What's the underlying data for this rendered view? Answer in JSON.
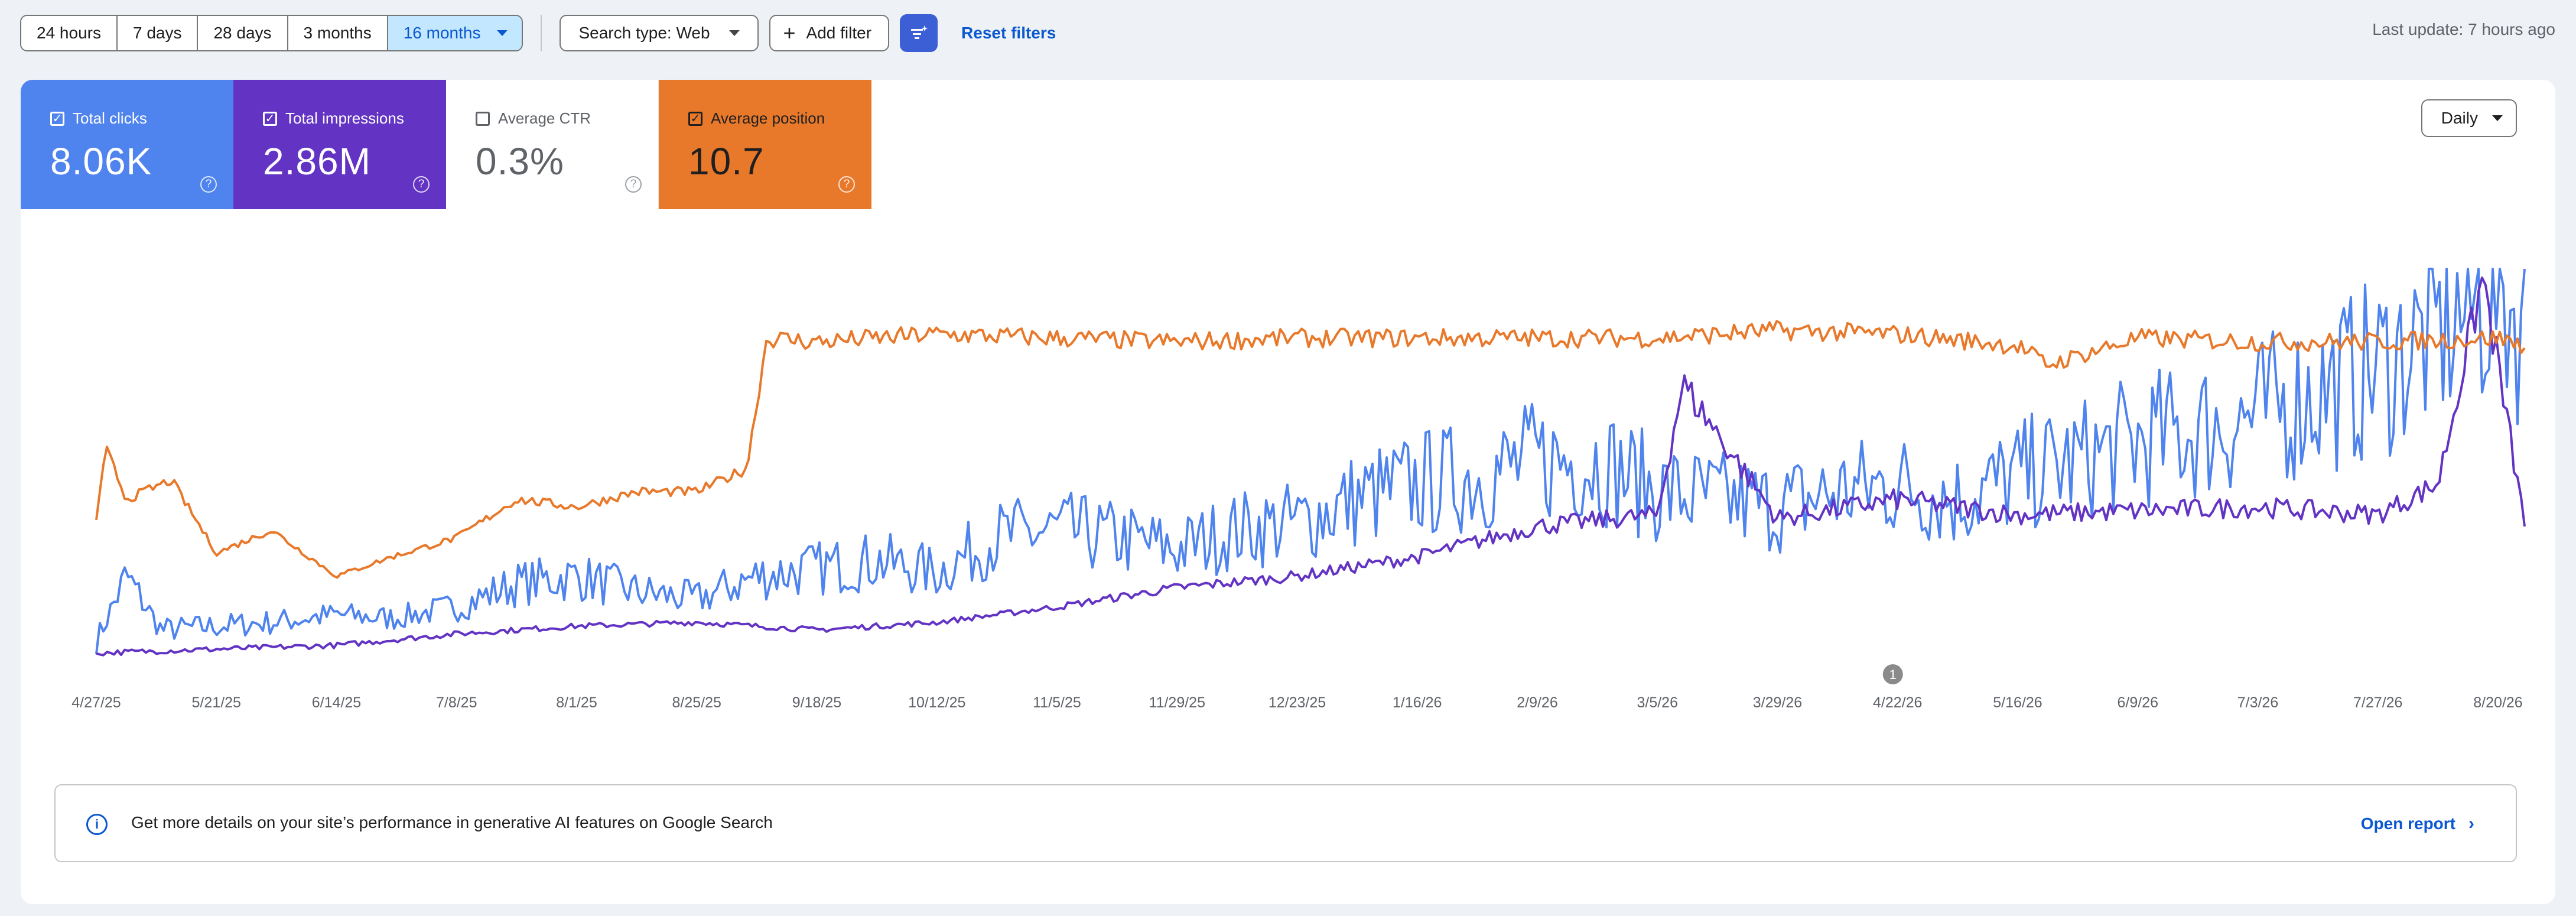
{
  "toolbar": {
    "ranges": [
      "24 hours",
      "7 days",
      "28 days",
      "3 months",
      "16 months"
    ],
    "active_range": "16 months",
    "search_type": "Search type: Web",
    "add_filter": "Add filter",
    "reset_filters": "Reset filters",
    "last_update": "Last update: 7 hours ago"
  },
  "metrics": {
    "clicks": {
      "label": "Total clicks",
      "value": "8.06K",
      "checked": true,
      "color": "#4f83ed"
    },
    "impressions": {
      "label": "Total impressions",
      "value": "2.86M",
      "checked": true,
      "color": "#6333c4"
    },
    "ctr": {
      "label": "Average CTR",
      "value": "0.3%",
      "checked": false
    },
    "position": {
      "label": "Average position",
      "value": "10.7",
      "checked": true,
      "color": "#e8792b"
    }
  },
  "granularity": "Daily",
  "annotation_marker": "1",
  "banner": {
    "text": "Get more details on your site’s performance in generative AI features on Google Search",
    "link": "Open report"
  },
  "chart_data": {
    "type": "line",
    "x_tick_labels": [
      "4/27/25",
      "5/21/25",
      "6/14/25",
      "7/8/25",
      "8/1/25",
      "8/25/25",
      "9/18/25",
      "10/12/25",
      "11/5/25",
      "11/29/25",
      "12/23/25",
      "1/16/26",
      "2/9/26",
      "3/5/26",
      "3/29/26",
      "4/22/26",
      "5/16/26",
      "6/9/26",
      "7/3/26",
      "7/27/26",
      "8/20/26"
    ],
    "x_range": [
      "4/27/25",
      "8/26/26"
    ],
    "annotation_at": "4/22/26",
    "grid": false,
    "series": [
      {
        "name": "Total clicks",
        "color": "#4f83ed",
        "description": "daily clicks, relative scale (0 = lowest, 100 = highest)",
        "points": [
          [
            "4/27/25",
            3
          ],
          [
            "5/3/25",
            20
          ],
          [
            "5/10/25",
            6
          ],
          [
            "5/21/25",
            7
          ],
          [
            "6/1/25",
            8
          ],
          [
            "6/14/25",
            10
          ],
          [
            "6/25/25",
            9
          ],
          [
            "7/8/25",
            12
          ],
          [
            "7/20/25",
            18
          ],
          [
            "8/1/25",
            20
          ],
          [
            "8/13/25",
            16
          ],
          [
            "8/25/25",
            14
          ],
          [
            "9/6/25",
            20
          ],
          [
            "9/18/25",
            22
          ],
          [
            "9/30/25",
            24
          ],
          [
            "10/12/25",
            21
          ],
          [
            "10/24/25",
            30
          ],
          [
            "11/5/25",
            32
          ],
          [
            "11/17/25",
            30
          ],
          [
            "11/29/25",
            27
          ],
          [
            "12/11/25",
            32
          ],
          [
            "12/23/25",
            34
          ],
          [
            "1/4/26",
            40
          ],
          [
            "1/16/26",
            44
          ],
          [
            "1/28/26",
            46
          ],
          [
            "2/9/26",
            50
          ],
          [
            "2/21/26",
            50
          ],
          [
            "3/5/26",
            42
          ],
          [
            "3/17/26",
            40
          ],
          [
            "3/29/26",
            38
          ],
          [
            "4/10/26",
            42
          ],
          [
            "4/22/26",
            44
          ],
          [
            "5/4/26",
            40
          ],
          [
            "5/16/26",
            46
          ],
          [
            "5/28/26",
            50
          ],
          [
            "6/9/26",
            55
          ],
          [
            "6/21/26",
            58
          ],
          [
            "7/3/26",
            62
          ],
          [
            "7/15/26",
            68
          ],
          [
            "7/27/26",
            74
          ],
          [
            "8/8/26",
            84
          ],
          [
            "8/20/26",
            95
          ],
          [
            "8/26/26",
            84
          ]
        ]
      },
      {
        "name": "Total impressions",
        "color": "#6333c4",
        "description": "daily impressions, relative scale (0 = lowest, 100 = highest)",
        "points": [
          [
            "4/27/25",
            0
          ],
          [
            "5/21/25",
            1
          ],
          [
            "6/14/25",
            2
          ],
          [
            "7/8/25",
            5
          ],
          [
            "8/1/25",
            7
          ],
          [
            "8/25/25",
            8
          ],
          [
            "9/18/25",
            6
          ],
          [
            "10/12/25",
            8
          ],
          [
            "11/5/25",
            12
          ],
          [
            "11/29/25",
            17
          ],
          [
            "12/23/25",
            20
          ],
          [
            "1/16/26",
            25
          ],
          [
            "2/9/26",
            33
          ],
          [
            "3/5/26",
            36
          ],
          [
            "3/10/26",
            70
          ],
          [
            "3/29/26",
            35
          ],
          [
            "4/22/26",
            40
          ],
          [
            "5/16/26",
            36
          ],
          [
            "6/9/26",
            37
          ],
          [
            "7/3/26",
            38
          ],
          [
            "7/27/26",
            36
          ],
          [
            "8/8/26",
            44
          ],
          [
            "8/17/26",
            98
          ],
          [
            "8/26/26",
            28
          ]
        ]
      },
      {
        "name": "Average position",
        "color": "#e8792b",
        "description": "average position, relative vertical scale (0 = bottom, 100 = top)",
        "points": [
          [
            "4/27/25",
            35
          ],
          [
            "4/29/25",
            53
          ],
          [
            "5/3/25",
            40
          ],
          [
            "5/12/25",
            45
          ],
          [
            "5/21/25",
            26
          ],
          [
            "6/1/25",
            32
          ],
          [
            "6/14/25",
            20
          ],
          [
            "6/25/25",
            25
          ],
          [
            "7/8/25",
            30
          ],
          [
            "7/20/25",
            40
          ],
          [
            "8/1/25",
            38
          ],
          [
            "8/13/25",
            42
          ],
          [
            "8/25/25",
            42
          ],
          [
            "9/4/25",
            48
          ],
          [
            "9/8/25",
            82
          ],
          [
            "9/18/25",
            81
          ],
          [
            "10/12/25",
            83
          ],
          [
            "11/5/25",
            82
          ],
          [
            "11/29/25",
            81
          ],
          [
            "12/23/25",
            82
          ],
          [
            "1/16/26",
            82
          ],
          [
            "2/9/26",
            82
          ],
          [
            "3/5/26",
            82
          ],
          [
            "3/29/26",
            84
          ],
          [
            "4/22/26",
            83
          ],
          [
            "5/16/26",
            80
          ],
          [
            "5/22/26",
            75
          ],
          [
            "6/9/26",
            82
          ],
          [
            "7/3/26",
            81
          ],
          [
            "7/27/26",
            81
          ],
          [
            "8/20/26",
            82
          ],
          [
            "8/26/26",
            80
          ]
        ]
      }
    ]
  }
}
